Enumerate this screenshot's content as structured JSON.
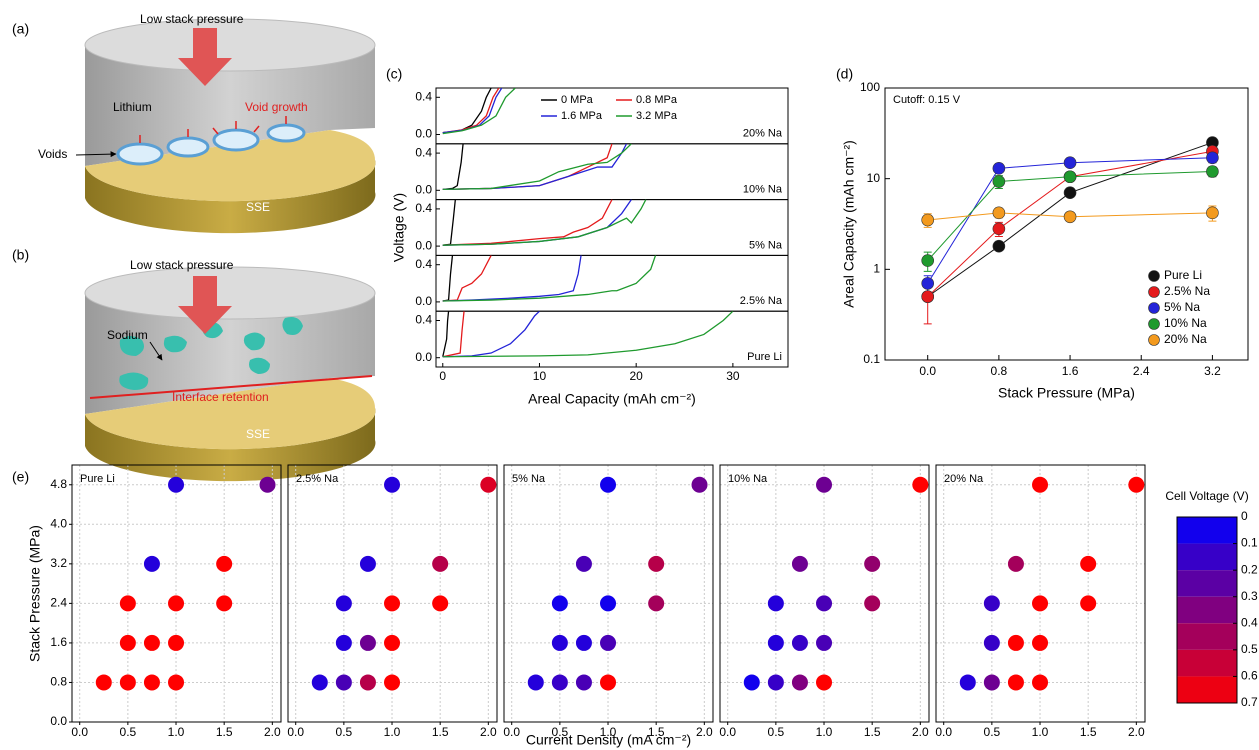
{
  "panel_labels": [
    "(a)",
    "(b)",
    "(c)",
    "(d)",
    "(e)"
  ],
  "illustration_a": {
    "pressure": "Low stack pressure",
    "metal": "Lithium",
    "effect": "Void growth",
    "callout": "Voids",
    "electrolyte": "SSE"
  },
  "illustration_b": {
    "pressure": "Low stack pressure",
    "metal": "Sodium",
    "effect": "Interface retention",
    "electrolyte": "SSE"
  },
  "chart_data": [
    {
      "type": "line",
      "xlabel": "Areal Capacity (mAh cm⁻²)",
      "ylabel": "Voltage (V)",
      "xlim": [
        -0.7,
        35.7
      ],
      "xticks": [
        0,
        10,
        20,
        30
      ],
      "ylim": [
        -0.1,
        0.5
      ],
      "yticks": [
        {
          "value": 0,
          "label": "0.0"
        },
        0.4
      ],
      "legend": [
        {
          "name": "0 MPa",
          "color": "#000000"
        },
        {
          "name": "0.8 MPa",
          "color": "#e41a1c"
        },
        {
          "name": "1.6 MPa",
          "color": "#2424d8"
        },
        {
          "name": "3.2 MPa",
          "color": "#1f9a2e"
        }
      ],
      "panels": [
        {
          "label": "20% Na",
          "series": [
            {
              "x": [
                0,
                1,
                2,
                3,
                4,
                4.5,
                5.0
              ],
              "values": [
                0.02,
                0.03,
                0.05,
                0.1,
                0.25,
                0.4,
                0.5
              ]
            },
            {
              "x": [
                0,
                2,
                3.5,
                4.5,
                5.2,
                5.8
              ],
              "values": [
                0.02,
                0.05,
                0.1,
                0.2,
                0.4,
                0.5
              ]
            },
            {
              "x": [
                0,
                2.3,
                3.8,
                4.8,
                5.5,
                6.1
              ],
              "values": [
                0.02,
                0.05,
                0.1,
                0.2,
                0.4,
                0.5
              ]
            },
            {
              "x": [
                0,
                2,
                4,
                5.5,
                6.5,
                7.5
              ],
              "values": [
                0.01,
                0.04,
                0.1,
                0.2,
                0.4,
                0.5
              ]
            }
          ]
        },
        {
          "label": "10% Na",
          "series": [
            {
              "x": [
                0,
                1,
                1.5,
                1.9,
                2.1
              ],
              "values": [
                0.01,
                0.02,
                0.05,
                0.3,
                0.5
              ]
            },
            {
              "x": [
                0,
                5,
                10,
                13,
                15,
                17,
                17.5
              ],
              "values": [
                0.01,
                0.02,
                0.05,
                0.15,
                0.25,
                0.35,
                0.5
              ]
            },
            {
              "x": [
                0,
                5,
                10,
                13,
                16,
                17.5,
                18.5,
                19
              ],
              "values": [
                0.01,
                0.02,
                0.05,
                0.15,
                0.25,
                0.25,
                0.4,
                0.5
              ]
            },
            {
              "x": [
                0,
                5,
                10,
                12,
                15,
                17,
                18.5,
                19.5
              ],
              "values": [
                0.01,
                0.02,
                0.1,
                0.2,
                0.28,
                0.3,
                0.4,
                0.5
              ]
            }
          ]
        },
        {
          "label": "5% Na",
          "series": [
            {
              "x": [
                0,
                0.8,
                1.1,
                1.3
              ],
              "values": [
                0.01,
                0.02,
                0.3,
                0.5
              ]
            },
            {
              "x": [
                0,
                5,
                10,
                12.5,
                13.5,
                15,
                16.5,
                17.5
              ],
              "values": [
                0.01,
                0.03,
                0.08,
                0.1,
                0.15,
                0.2,
                0.3,
                0.5
              ]
            },
            {
              "x": [
                0,
                5,
                10,
                14,
                17,
                18.5,
                19.5
              ],
              "values": [
                0.01,
                0.02,
                0.05,
                0.1,
                0.2,
                0.35,
                0.5
              ]
            },
            {
              "x": [
                0,
                5,
                10,
                14,
                17,
                19,
                19.5,
                20.5,
                21
              ],
              "values": [
                0.01,
                0.02,
                0.05,
                0.1,
                0.2,
                0.3,
                0.25,
                0.4,
                0.5
              ]
            }
          ]
        },
        {
          "label": "2.5% Na",
          "series": [
            {
              "x": [
                0,
                0.6,
                0.8,
                1
              ],
              "values": [
                0.01,
                0.02,
                0.3,
                0.5
              ]
            },
            {
              "x": [
                0,
                1.5,
                2,
                3,
                4,
                5
              ],
              "values": [
                0.01,
                0.02,
                0.15,
                0.2,
                0.3,
                0.5
              ]
            },
            {
              "x": [
                0,
                3,
                7,
                10,
                12,
                13.5,
                14,
                14.3
              ],
              "values": [
                0.01,
                0.02,
                0.04,
                0.06,
                0.08,
                0.12,
                0.3,
                0.5
              ]
            },
            {
              "x": [
                0,
                5,
                10,
                15,
                17.5,
                18,
                20,
                21.5,
                22
              ],
              "values": [
                0.01,
                0.02,
                0.04,
                0.08,
                0.12,
                0.12,
                0.2,
                0.35,
                0.5
              ]
            }
          ]
        },
        {
          "label": "Pure Li",
          "series": [
            {
              "x": [
                0,
                0.4,
                0.5,
                0.6
              ],
              "values": [
                0.01,
                0.2,
                0.4,
                0.5
              ]
            },
            {
              "x": [
                0,
                1.8,
                2,
                2.2
              ],
              "values": [
                0.01,
                0.05,
                0.3,
                0.5
              ]
            },
            {
              "x": [
                0,
                3,
                5,
                7,
                8.5,
                9.5,
                10
              ],
              "values": [
                0.01,
                0.02,
                0.05,
                0.15,
                0.3,
                0.45,
                0.5
              ]
            },
            {
              "x": [
                0,
                10,
                15,
                20,
                24,
                27,
                29,
                30
              ],
              "values": [
                0.01,
                0.02,
                0.03,
                0.08,
                0.15,
                0.25,
                0.4,
                0.5
              ]
            }
          ]
        }
      ]
    },
    {
      "type": "errorbar",
      "xlabel": "Stack Pressure (MPa)",
      "ylabel": "Areal Capacity (mAh cm⁻²)",
      "annotation": "Cutoff: 0.15 V",
      "xlim": [
        -0.48,
        3.6
      ],
      "xticks": [
        {
          "value": 0,
          "label": "0.0"
        },
        0.8,
        1.6,
        2.4,
        3.2
      ],
      "ylog": true,
      "ylim": [
        0.1,
        100
      ],
      "yticks": [
        0.1,
        1,
        10,
        100
      ],
      "legend": "lower right",
      "x": [
        0,
        0.8,
        1.6,
        3.2
      ],
      "series": [
        {
          "name": "Pure Li",
          "color": "#111111",
          "values": [
            0.5,
            1.8,
            7,
            25
          ],
          "errors": [
            0.05,
            0.15,
            0.5,
            2
          ]
        },
        {
          "name": "2.5% Na",
          "color": "#e41a1c",
          "values": [
            0.5,
            2.8,
            10.5,
            20
          ],
          "errors": [
            0.25,
            0.5,
            0.8,
            1.5
          ]
        },
        {
          "name": "5% Na",
          "color": "#2424d8",
          "values": [
            0.7,
            13,
            15,
            17
          ],
          "errors": [
            0.15,
            1,
            1,
            2
          ]
        },
        {
          "name": "10% Na",
          "color": "#1f9a2e",
          "values": [
            1.25,
            9.3,
            10.5,
            12
          ],
          "errors": [
            0.3,
            1.5,
            0.8,
            1.5
          ]
        },
        {
          "name": "20% Na",
          "color": "#f39a1e",
          "values": [
            3.5,
            4.2,
            3.8,
            4.2
          ],
          "errors": [
            0.6,
            0.5,
            0.4,
            0.8
          ]
        }
      ]
    },
    {
      "type": "scatter",
      "xlabel": "Current Density (mA cm⁻²)",
      "ylabel": "Stack Pressure (MPa)",
      "xlim": [
        -0.08,
        2.09
      ],
      "xticks": [
        {
          "value": 0,
          "label": "0.0"
        },
        0.5,
        {
          "value": 1,
          "label": "1.0"
        },
        1.5,
        {
          "value": 2,
          "label": "2.0"
        }
      ],
      "ylim": [
        0,
        5.2
      ],
      "yticks": [
        {
          "value": 0,
          "label": "0.0"
        },
        0.8,
        1.6,
        2.4,
        3.2,
        {
          "value": 4,
          "label": "4.0"
        },
        4.8
      ],
      "grid": true,
      "colorbar_title": "Cell Voltage (V)",
      "clim": [
        0,
        0.7
      ],
      "cticks": [
        0,
        0.1,
        0.2,
        0.3,
        0.4,
        0.5,
        0.6,
        0.7
      ],
      "cmap": [
        "#0000ff",
        "#ff0000"
      ],
      "panels": [
        {
          "label": "Pure Li",
          "x": [
            1.0,
            1.95,
            0.75,
            1.5,
            0.5,
            1.0,
            1.5,
            0.5,
            0.75,
            1.0,
            0.25,
            0.5,
            0.75,
            1.0
          ],
          "y": [
            4.8,
            4.8,
            3.2,
            3.2,
            2.4,
            2.4,
            2.4,
            1.6,
            1.6,
            1.6,
            0.8,
            0.8,
            0.8,
            0.8
          ],
          "values": [
            0.1,
            0.3,
            0.1,
            0.7,
            0.7,
            0.7,
            0.7,
            0.7,
            0.7,
            0.7,
            0.7,
            0.7,
            0.7,
            0.7
          ]
        },
        {
          "label": "2.5% Na",
          "x": [
            1.0,
            2.0,
            0.75,
            1.5,
            0.5,
            1.0,
            1.5,
            0.5,
            0.75,
            1.0,
            0.25,
            0.5,
            0.75,
            1.0
          ],
          "y": [
            4.8,
            4.8,
            3.2,
            3.2,
            2.4,
            2.4,
            2.4,
            1.6,
            1.6,
            1.6,
            0.8,
            0.8,
            0.8,
            0.8
          ],
          "values": [
            0.1,
            0.6,
            0.1,
            0.5,
            0.1,
            0.7,
            0.7,
            0.1,
            0.3,
            0.7,
            0.1,
            0.2,
            0.5,
            0.7
          ]
        },
        {
          "label": "5% Na",
          "x": [
            1.0,
            1.95,
            0.75,
            1.5,
            0.5,
            1.0,
            1.5,
            0.5,
            0.75,
            1.0,
            0.25,
            0.5,
            0.75,
            1.0
          ],
          "y": [
            4.8,
            4.8,
            3.2,
            3.2,
            2.4,
            2.4,
            2.4,
            1.6,
            1.6,
            1.6,
            0.8,
            0.8,
            0.8,
            0.8
          ],
          "values": [
            0.05,
            0.3,
            0.2,
            0.5,
            0.05,
            0.05,
            0.45,
            0.1,
            0.1,
            0.2,
            0.1,
            0.15,
            0.2,
            0.7
          ]
        },
        {
          "label": "10% Na",
          "x": [
            1.0,
            2.0,
            0.75,
            1.5,
            0.5,
            1.0,
            1.5,
            0.5,
            0.75,
            1.0,
            0.25,
            0.5,
            0.75,
            1.0
          ],
          "y": [
            4.8,
            4.8,
            3.2,
            3.2,
            2.4,
            2.4,
            2.4,
            1.6,
            1.6,
            1.6,
            0.8,
            0.8,
            0.8,
            0.8
          ],
          "values": [
            0.3,
            0.7,
            0.3,
            0.4,
            0.1,
            0.2,
            0.45,
            0.1,
            0.15,
            0.2,
            0.05,
            0.15,
            0.35,
            0.7
          ]
        },
        {
          "label": "20% Na",
          "x": [
            1.0,
            2.0,
            0.75,
            1.5,
            0.5,
            1.0,
            1.5,
            0.5,
            0.75,
            1.0,
            0.25,
            0.5,
            0.75,
            1.0
          ],
          "y": [
            4.8,
            4.8,
            3.2,
            3.2,
            2.4,
            2.4,
            2.4,
            1.6,
            1.6,
            1.6,
            0.8,
            0.8,
            0.8,
            0.8
          ],
          "values": [
            0.7,
            0.7,
            0.45,
            0.7,
            0.15,
            0.7,
            0.7,
            0.15,
            0.7,
            0.7,
            0.1,
            0.3,
            0.7,
            0.7
          ]
        }
      ]
    }
  ]
}
